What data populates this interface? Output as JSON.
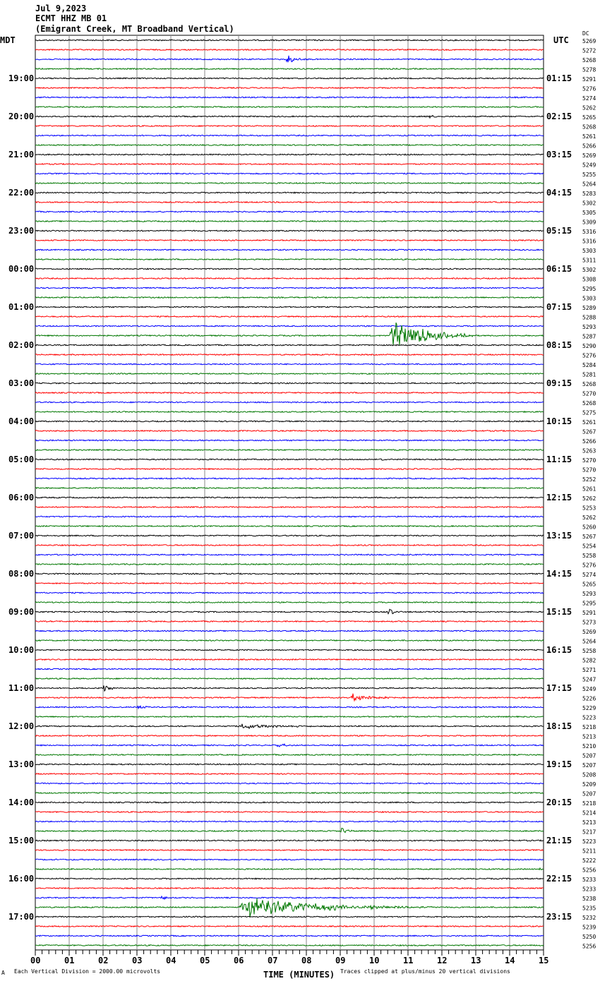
{
  "header": {
    "date": "Jul 9,2023",
    "station": "ECMT HHZ MB 01",
    "description": "(Emigrant Creek, MT Broadband Vertical)",
    "left_timezone": "MDT",
    "right_timezone": "UTC",
    "dc_label": "DC"
  },
  "footer": {
    "scale_note": "Each Vertical Division = 2000.00 microvolts",
    "clip_note": "Traces clipped at plus/minus 20 vertical divisions",
    "corner_mark": "A"
  },
  "chart_data": {
    "type": "line",
    "title": "",
    "xlabel": "TIME (MINUTES)",
    "xlim": [
      0,
      15
    ],
    "x_ticks": [
      "00",
      "01",
      "02",
      "03",
      "04",
      "05",
      "06",
      "07",
      "08",
      "09",
      "10",
      "11",
      "12",
      "13",
      "14",
      "15"
    ],
    "grid": true,
    "trace_colors": [
      "#000000",
      "#ff0000",
      "#0000ff",
      "#007700"
    ],
    "traces_per_hour": 4,
    "minutes_per_trace": 15,
    "left_hour_labels": [
      "19:00",
      "20:00",
      "21:00",
      "22:00",
      "23:00",
      "00:00",
      "01:00",
      "02:00",
      "03:00",
      "04:00",
      "05:00",
      "06:00",
      "07:00",
      "08:00",
      "09:00",
      "10:00",
      "11:00",
      "12:00",
      "13:00",
      "14:00",
      "15:00",
      "16:00",
      "17:00"
    ],
    "right_hour_labels": [
      "01:15",
      "02:15",
      "03:15",
      "04:15",
      "05:15",
      "06:15",
      "07:15",
      "08:15",
      "09:15",
      "10:15",
      "11:15",
      "12:15",
      "13:15",
      "14:15",
      "15:15",
      "16:15",
      "17:15",
      "18:15",
      "19:15",
      "20:15",
      "21:15",
      "22:15",
      "23:15"
    ],
    "dc_offsets": [
      5269,
      5272,
      5268,
      5278,
      5291,
      5276,
      5274,
      5262,
      5265,
      5268,
      5261,
      5266,
      5269,
      5249,
      5255,
      5264,
      5283,
      5302,
      5305,
      5309,
      5316,
      5316,
      5303,
      5311,
      5302,
      5308,
      5295,
      5303,
      5289,
      5288,
      5293,
      5287,
      5290,
      5276,
      5284,
      5281,
      5268,
      5270,
      5268,
      5275,
      5261,
      5267,
      5266,
      5263,
      5270,
      5270,
      5252,
      5261,
      5262,
      5253,
      5262,
      5260,
      5267,
      5254,
      5258,
      5276,
      5274,
      5265,
      5293,
      5295,
      5291,
      5273,
      5269,
      5264,
      5258,
      5282,
      5271,
      5247,
      5249,
      5226,
      5229,
      5223,
      5218,
      5213,
      5210,
      5207,
      5207,
      5208,
      5209,
      5207,
      5218,
      5214,
      5213,
      5217,
      5223,
      5211,
      5222,
      5256,
      5233,
      5233,
      5238,
      5235,
      5232,
      5239,
      5250,
      5256
    ],
    "events": [
      {
        "trace": 2,
        "start_min": 7.4,
        "duration_min": 0.7,
        "amplitude_div": 1.0
      },
      {
        "trace": 8,
        "start_min": 11.5,
        "duration_min": 0.5,
        "amplitude_div": 0.5
      },
      {
        "trace": 31,
        "start_min": 10.45,
        "duration_min": 2.5,
        "amplitude_div": 4.0
      },
      {
        "trace": 44,
        "start_min": 10.2,
        "duration_min": 0.5,
        "amplitude_div": 0.4
      },
      {
        "trace": 60,
        "start_min": 10.4,
        "duration_min": 0.4,
        "amplitude_div": 1.0
      },
      {
        "trace": 68,
        "start_min": 2.0,
        "duration_min": 0.6,
        "amplitude_div": 0.8
      },
      {
        "trace": 69,
        "start_min": 9.3,
        "duration_min": 1.5,
        "amplitude_div": 0.9
      },
      {
        "trace": 70,
        "start_min": 3.0,
        "duration_min": 0.4,
        "amplitude_div": 0.8
      },
      {
        "trace": 72,
        "start_min": 6.0,
        "duration_min": 2.5,
        "amplitude_div": 0.7
      },
      {
        "trace": 74,
        "start_min": 7.1,
        "duration_min": 0.6,
        "amplitude_div": 0.6
      },
      {
        "trace": 83,
        "start_min": 9.0,
        "duration_min": 0.6,
        "amplitude_div": 0.7
      },
      {
        "trace": 87,
        "start_min": 14.8,
        "duration_min": 0.2,
        "amplitude_div": 1.0
      },
      {
        "trace": 91,
        "start_min": 6.0,
        "duration_min": 6.0,
        "amplitude_div": 2.2
      },
      {
        "trace": 90,
        "start_min": 3.7,
        "duration_min": 0.4,
        "amplitude_div": 0.6
      }
    ]
  }
}
